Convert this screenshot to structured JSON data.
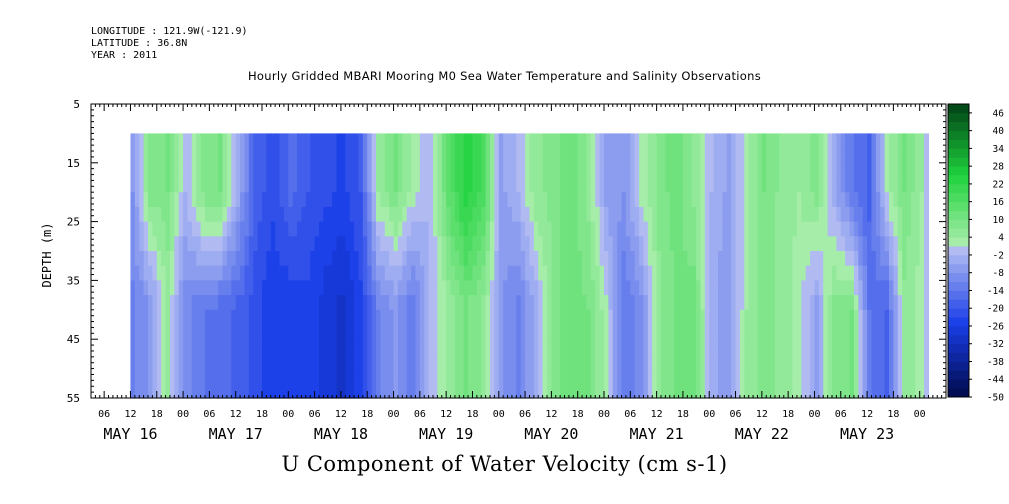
{
  "header": {
    "longitude": "LONGITUDE : 121.9W(-121.9)",
    "latitude": "LATITUDE : 36.8N",
    "year": "YEAR : 2011"
  },
  "chart_data": {
    "type": "heatmap",
    "title": "Hourly Gridded MBARI Mooring M0 Sea Water Temperature and Salinity Observations",
    "xlabel": "U Component of Water Velocity (cm s-1)",
    "ylabel": "DEPTH (m)",
    "xlim": [
      "2011-05-15T03:00",
      "2011-05-23T06:00"
    ],
    "ylim": [
      55,
      5
    ],
    "y_ticks": [
      5,
      15,
      25,
      35,
      45,
      55
    ],
    "x_hour_ticks": [
      "06",
      "12",
      "18",
      "00",
      "06",
      "12",
      "18",
      "00",
      "06",
      "12",
      "18",
      "00",
      "06",
      "12",
      "18",
      "00",
      "06",
      "12",
      "18",
      "00",
      "06",
      "12",
      "18",
      "00",
      "06",
      "12",
      "18",
      "00",
      "06",
      "12",
      "18",
      "00"
    ],
    "x_hour_tick_times": [
      "2011-05-15T06:00",
      "2011-05-15T12:00",
      "2011-05-15T18:00",
      "2011-05-16T00:00",
      "2011-05-16T06:00",
      "2011-05-16T12:00",
      "2011-05-16T18:00",
      "2011-05-17T00:00",
      "2011-05-17T06:00",
      "2011-05-17T12:00",
      "2011-05-17T18:00",
      "2011-05-18T00:00",
      "2011-05-18T06:00",
      "2011-05-18T12:00",
      "2011-05-18T18:00",
      "2011-05-19T00:00",
      "2011-05-19T06:00",
      "2011-05-19T12:00",
      "2011-05-19T18:00",
      "2011-05-20T00:00",
      "2011-05-20T06:00",
      "2011-05-20T12:00",
      "2011-05-20T18:00",
      "2011-05-21T00:00",
      "2011-05-21T06:00",
      "2011-05-21T12:00",
      "2011-05-21T18:00",
      "2011-05-22T00:00",
      "2011-05-22T06:00",
      "2011-05-22T12:00",
      "2011-05-22T18:00",
      "2011-05-23T00:00"
    ],
    "x_day_labels": [
      {
        "label": "MAY 16",
        "time": "2011-05-15T12:00"
      },
      {
        "label": "MAY 17",
        "time": "2011-05-16T12:00"
      },
      {
        "label": "MAY 18",
        "time": "2011-05-17T12:00"
      },
      {
        "label": "MAY 19",
        "time": "2011-05-18T12:00"
      },
      {
        "label": "MAY 20",
        "time": "2011-05-19T12:00"
      },
      {
        "label": "MAY 21",
        "time": "2011-05-20T12:00"
      },
      {
        "label": "MAY 22",
        "time": "2011-05-21T12:00"
      },
      {
        "label": "MAY 23",
        "time": "2011-05-22T12:00"
      }
    ],
    "data_time_range": [
      "2011-05-15T12:00",
      "2011-05-23T02:00"
    ],
    "data_depth_range": [
      10,
      55
    ],
    "colorbar": {
      "levels": [
        -50,
        -47,
        -44,
        -41,
        -38,
        -35,
        -32,
        -29,
        -26,
        -23,
        -20,
        -17,
        -14,
        -11,
        -8,
        -5,
        -2,
        1,
        4,
        7,
        10,
        13,
        16,
        19,
        22,
        25,
        28,
        31,
        34,
        37,
        40,
        43,
        46,
        49
      ],
      "tick_labels": [
        "46",
        "40",
        "34",
        "28",
        "22",
        "16",
        "10",
        "4",
        "-2",
        "-8",
        "-14",
        "-20",
        "-26",
        "-32",
        "-38",
        "-44",
        "-50"
      ],
      "colors": {
        "neg_dark": "#000a4a",
        "neg_mid": "#1a3ee8",
        "neg_light": "#b4bef2",
        "pos_light": "#b4f0b4",
        "pos_mid": "#1ed23c",
        "pos_dark": "#003c14"
      }
    },
    "field_samples": {
      "times": [
        "2011-05-15T12:00",
        "2011-05-15T16:00",
        "2011-05-15T20:00",
        "2011-05-16T00:00",
        "2011-05-16T04:00",
        "2011-05-16T08:00",
        "2011-05-16T12:00",
        "2011-05-16T16:00",
        "2011-05-16T20:00",
        "2011-05-17T00:00",
        "2011-05-17T04:00",
        "2011-05-17T08:00",
        "2011-05-17T12:00",
        "2011-05-17T16:00",
        "2011-05-17T20:00",
        "2011-05-18T00:00",
        "2011-05-18T04:00",
        "2011-05-18T08:00",
        "2011-05-18T12:00",
        "2011-05-18T16:00",
        "2011-05-18T20:00",
        "2011-05-19T00:00",
        "2011-05-19T04:00",
        "2011-05-19T08:00",
        "2011-05-19T12:00",
        "2011-05-19T16:00",
        "2011-05-19T20:00",
        "2011-05-20T00:00",
        "2011-05-20T04:00",
        "2011-05-20T08:00",
        "2011-05-20T12:00",
        "2011-05-20T16:00",
        "2011-05-20T20:00",
        "2011-05-21T00:00",
        "2011-05-21T04:00",
        "2011-05-21T08:00",
        "2011-05-21T12:00",
        "2011-05-21T16:00",
        "2011-05-21T20:00",
        "2011-05-22T00:00",
        "2011-05-22T04:00",
        "2011-05-22T08:00",
        "2011-05-22T12:00",
        "2011-05-22T16:00",
        "2011-05-22T20:00",
        "2011-05-23T00:00",
        "2011-05-23T02:00"
      ],
      "shallow_u_10_to_30m": [
        -8,
        8,
        10,
        -2,
        8,
        10,
        -4,
        -18,
        -22,
        -16,
        -20,
        -22,
        -24,
        -20,
        4,
        10,
        2,
        -2,
        14,
        24,
        18,
        -6,
        -2,
        6,
        8,
        12,
        6,
        -6,
        -8,
        2,
        8,
        12,
        6,
        -2,
        -6,
        2,
        10,
        6,
        4,
        8,
        -4,
        -14,
        -18,
        2,
        10,
        4,
        -4
      ],
      "deep_u_30_to_55m": [
        -12,
        -8,
        4,
        -10,
        -14,
        -16,
        -18,
        -22,
        -26,
        -26,
        -24,
        -28,
        -30,
        -24,
        -12,
        -8,
        -14,
        -2,
        4,
        10,
        6,
        -8,
        -12,
        -4,
        8,
        12,
        10,
        2,
        -14,
        -10,
        6,
        10,
        12,
        -4,
        -8,
        4,
        8,
        6,
        2,
        -6,
        8,
        10,
        -14,
        -18,
        6,
        2,
        -4
      ]
    }
  }
}
